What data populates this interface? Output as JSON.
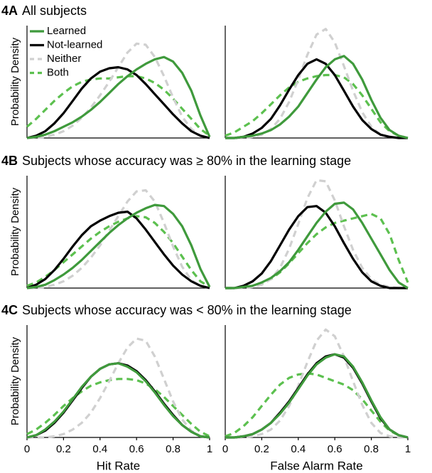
{
  "chart_data": [
    {
      "type": "line",
      "panel_label": "4A",
      "title": "All subjects",
      "ylabel": "Probability Density",
      "legend": "upper left",
      "x": [
        0,
        0.05,
        0.1,
        0.15,
        0.2,
        0.25,
        0.3,
        0.35,
        0.4,
        0.45,
        0.5,
        0.55,
        0.6,
        0.65,
        0.7,
        0.75,
        0.8,
        0.85,
        0.9,
        0.95,
        1
      ],
      "xlim": [
        0,
        1
      ],
      "ylim": [
        0,
        1
      ],
      "series": [
        {
          "name": "Learned",
          "color": "#3f9a3c",
          "dash": false,
          "values": [
            0,
            0.01,
            0.03,
            0.06,
            0.1,
            0.14,
            0.19,
            0.25,
            0.32,
            0.4,
            0.48,
            0.55,
            0.61,
            0.66,
            0.7,
            0.72,
            0.68,
            0.58,
            0.42,
            0.2,
            0.01
          ]
        },
        {
          "name": "Not-learned",
          "color": "#000000",
          "dash": false,
          "values": [
            0,
            0.02,
            0.06,
            0.13,
            0.22,
            0.33,
            0.44,
            0.53,
            0.59,
            0.62,
            0.63,
            0.61,
            0.56,
            0.48,
            0.39,
            0.3,
            0.21,
            0.13,
            0.06,
            0.02,
            0
          ]
        },
        {
          "name": "Neither",
          "color": "#d0d0d0",
          "dash": true,
          "values": [
            0,
            0,
            0.01,
            0.03,
            0.06,
            0.11,
            0.18,
            0.27,
            0.38,
            0.5,
            0.63,
            0.76,
            0.84,
            0.83,
            0.72,
            0.55,
            0.36,
            0.19,
            0.08,
            0.02,
            0
          ]
        },
        {
          "name": "Both",
          "color": "#5cc04f",
          "dash": true,
          "values": [
            0.1,
            0.17,
            0.25,
            0.33,
            0.4,
            0.46,
            0.5,
            0.52,
            0.53,
            0.53,
            0.54,
            0.55,
            0.55,
            0.53,
            0.49,
            0.43,
            0.35,
            0.26,
            0.17,
            0.08,
            0.02
          ]
        }
      ]
    },
    {
      "type": "line",
      "x": [
        0,
        0.05,
        0.1,
        0.15,
        0.2,
        0.25,
        0.3,
        0.35,
        0.4,
        0.45,
        0.5,
        0.55,
        0.6,
        0.65,
        0.7,
        0.75,
        0.8,
        0.85,
        0.9,
        0.95,
        1
      ],
      "xlim": [
        0,
        1
      ],
      "ylim": [
        0,
        1
      ],
      "series": [
        {
          "color": "#3f9a3c",
          "dash": false,
          "values": [
            0,
            0,
            0.01,
            0.02,
            0.04,
            0.07,
            0.12,
            0.19,
            0.28,
            0.4,
            0.52,
            0.63,
            0.7,
            0.73,
            0.66,
            0.52,
            0.34,
            0.18,
            0.07,
            0.02,
            0
          ]
        },
        {
          "color": "#000000",
          "dash": false,
          "values": [
            0,
            0,
            0.01,
            0.04,
            0.09,
            0.17,
            0.29,
            0.43,
            0.56,
            0.66,
            0.7,
            0.66,
            0.56,
            0.42,
            0.28,
            0.16,
            0.08,
            0.03,
            0.01,
            0,
            0
          ]
        },
        {
          "color": "#d0d0d0",
          "dash": true,
          "values": [
            0,
            0,
            0,
            0.01,
            0.03,
            0.08,
            0.17,
            0.32,
            0.52,
            0.74,
            0.92,
            0.97,
            0.85,
            0.64,
            0.42,
            0.23,
            0.1,
            0.03,
            0.01,
            0,
            0
          ]
        },
        {
          "color": "#5cc04f",
          "dash": true,
          "values": [
            0.02,
            0.05,
            0.1,
            0.15,
            0.22,
            0.3,
            0.38,
            0.45,
            0.5,
            0.53,
            0.55,
            0.56,
            0.56,
            0.54,
            0.48,
            0.38,
            0.26,
            0.14,
            0.06,
            0.02,
            0
          ]
        }
      ]
    },
    {
      "type": "line",
      "panel_label": "4B",
      "title": "Subjects whose accuracy was ≥ 80% in the learning stage",
      "ylabel": "Probability Density",
      "x": [
        0,
        0.05,
        0.1,
        0.15,
        0.2,
        0.25,
        0.3,
        0.35,
        0.4,
        0.45,
        0.5,
        0.55,
        0.6,
        0.65,
        0.7,
        0.75,
        0.8,
        0.85,
        0.9,
        0.95,
        1
      ],
      "xlim": [
        0,
        1
      ],
      "ylim": [
        0,
        1
      ],
      "series": [
        {
          "color": "#3f9a3c",
          "dash": false,
          "values": [
            0,
            0.01,
            0.03,
            0.07,
            0.12,
            0.18,
            0.25,
            0.33,
            0.41,
            0.49,
            0.56,
            0.62,
            0.67,
            0.71,
            0.74,
            0.73,
            0.66,
            0.55,
            0.38,
            0.17,
            0.01
          ]
        },
        {
          "color": "#000000",
          "dash": false,
          "values": [
            0,
            0.03,
            0.08,
            0.16,
            0.26,
            0.37,
            0.47,
            0.55,
            0.6,
            0.64,
            0.67,
            0.68,
            0.62,
            0.52,
            0.41,
            0.3,
            0.2,
            0.12,
            0.06,
            0.02,
            0
          ]
        },
        {
          "color": "#d0d0d0",
          "dash": true,
          "values": [
            0,
            0,
            0.01,
            0.03,
            0.06,
            0.11,
            0.18,
            0.27,
            0.38,
            0.51,
            0.64,
            0.77,
            0.86,
            0.87,
            0.77,
            0.58,
            0.37,
            0.19,
            0.07,
            0.02,
            0
          ]
        },
        {
          "color": "#5cc04f",
          "dash": true,
          "values": [
            0.02,
            0.05,
            0.1,
            0.16,
            0.23,
            0.3,
            0.37,
            0.44,
            0.5,
            0.55,
            0.59,
            0.62,
            0.64,
            0.63,
            0.58,
            0.5,
            0.4,
            0.28,
            0.16,
            0.06,
            0.01
          ]
        }
      ]
    },
    {
      "type": "line",
      "x": [
        0,
        0.05,
        0.1,
        0.15,
        0.2,
        0.25,
        0.3,
        0.35,
        0.4,
        0.45,
        0.5,
        0.55,
        0.6,
        0.65,
        0.7,
        0.75,
        0.8,
        0.85,
        0.9,
        0.95,
        1
      ],
      "xlim": [
        0,
        1
      ],
      "ylim": [
        0,
        1
      ],
      "series": [
        {
          "color": "#3f9a3c",
          "dash": false,
          "values": [
            0,
            0,
            0.01,
            0.02,
            0.05,
            0.09,
            0.15,
            0.23,
            0.34,
            0.46,
            0.58,
            0.68,
            0.75,
            0.76,
            0.7,
            0.58,
            0.44,
            0.3,
            0.16,
            0.05,
            0
          ]
        },
        {
          "color": "#000000",
          "dash": false,
          "values": [
            0,
            0,
            0.02,
            0.06,
            0.13,
            0.24,
            0.38,
            0.52,
            0.64,
            0.72,
            0.73,
            0.67,
            0.55,
            0.4,
            0.26,
            0.14,
            0.06,
            0.02,
            0,
            0,
            0
          ]
        },
        {
          "color": "#d0d0d0",
          "dash": true,
          "values": [
            0,
            0,
            0,
            0.01,
            0.03,
            0.08,
            0.18,
            0.35,
            0.57,
            0.8,
            0.96,
            0.95,
            0.78,
            0.55,
            0.34,
            0.18,
            0.08,
            0.03,
            0.01,
            0,
            0
          ]
        },
        {
          "color": "#5cc04f",
          "dash": true,
          "values": [
            0,
            0,
            0.01,
            0.02,
            0.04,
            0.08,
            0.14,
            0.22,
            0.31,
            0.4,
            0.48,
            0.54,
            0.58,
            0.6,
            0.62,
            0.64,
            0.66,
            0.62,
            0.48,
            0.25,
            0.05
          ]
        }
      ]
    },
    {
      "type": "line",
      "panel_label": "4C",
      "title": "Subjects whose accuracy was < 80% in the learning stage",
      "ylabel": "Probability Density",
      "xlabel": "Hit Rate",
      "x": [
        0,
        0.05,
        0.1,
        0.15,
        0.2,
        0.25,
        0.3,
        0.35,
        0.4,
        0.45,
        0.5,
        0.55,
        0.6,
        0.65,
        0.7,
        0.75,
        0.8,
        0.85,
        0.9,
        0.95,
        1
      ],
      "xlim": [
        0,
        1
      ],
      "ylim": [
        0,
        1
      ],
      "xticks": [
        0,
        0.2,
        0.4,
        0.6,
        0.8,
        1
      ],
      "series": [
        {
          "color": "#3f9a3c",
          "dash": false,
          "values": [
            0,
            0.02,
            0.07,
            0.14,
            0.23,
            0.34,
            0.45,
            0.54,
            0.61,
            0.65,
            0.66,
            0.63,
            0.58,
            0.5,
            0.4,
            0.29,
            0.19,
            0.11,
            0.05,
            0.01,
            0
          ]
        },
        {
          "color": "#000000",
          "dash": false,
          "values": [
            0,
            0.02,
            0.06,
            0.13,
            0.22,
            0.33,
            0.44,
            0.54,
            0.61,
            0.65,
            0.66,
            0.64,
            0.59,
            0.51,
            0.41,
            0.3,
            0.2,
            0.11,
            0.05,
            0.01,
            0
          ]
        },
        {
          "color": "#d0d0d0",
          "dash": true,
          "values": [
            0,
            0,
            0,
            0.01,
            0.03,
            0.07,
            0.13,
            0.22,
            0.35,
            0.5,
            0.66,
            0.8,
            0.88,
            0.86,
            0.72,
            0.52,
            0.32,
            0.16,
            0.06,
            0.01,
            0
          ]
        },
        {
          "color": "#5cc04f",
          "dash": true,
          "values": [
            0.03,
            0.07,
            0.13,
            0.2,
            0.28,
            0.35,
            0.41,
            0.46,
            0.49,
            0.51,
            0.52,
            0.52,
            0.51,
            0.48,
            0.43,
            0.36,
            0.28,
            0.2,
            0.12,
            0.05,
            0.01
          ]
        }
      ]
    },
    {
      "type": "line",
      "xlabel": "False Alarm Rate",
      "x": [
        0,
        0.05,
        0.1,
        0.15,
        0.2,
        0.25,
        0.3,
        0.35,
        0.4,
        0.45,
        0.5,
        0.55,
        0.6,
        0.65,
        0.7,
        0.75,
        0.8,
        0.85,
        0.9,
        0.95,
        1
      ],
      "xlim": [
        0,
        1
      ],
      "ylim": [
        0,
        1
      ],
      "xticks": [
        0,
        0.2,
        0.4,
        0.6,
        0.8,
        1
      ],
      "series": [
        {
          "color": "#3f9a3c",
          "dash": false,
          "values": [
            0,
            0,
            0.01,
            0.03,
            0.07,
            0.13,
            0.21,
            0.31,
            0.43,
            0.55,
            0.65,
            0.71,
            0.74,
            0.72,
            0.63,
            0.49,
            0.33,
            0.18,
            0.07,
            0.02,
            0
          ]
        },
        {
          "color": "#000000",
          "dash": false,
          "values": [
            0,
            0,
            0.01,
            0.03,
            0.07,
            0.13,
            0.22,
            0.32,
            0.44,
            0.56,
            0.66,
            0.72,
            0.74,
            0.71,
            0.62,
            0.48,
            0.32,
            0.17,
            0.07,
            0.02,
            0
          ]
        },
        {
          "color": "#d0d0d0",
          "dash": true,
          "values": [
            0,
            0,
            0,
            0.01,
            0.03,
            0.07,
            0.15,
            0.28,
            0.46,
            0.67,
            0.86,
            0.96,
            0.9,
            0.72,
            0.5,
            0.29,
            0.13,
            0.04,
            0.01,
            0,
            0
          ]
        },
        {
          "color": "#5cc04f",
          "dash": true,
          "values": [
            0.01,
            0.04,
            0.1,
            0.18,
            0.28,
            0.38,
            0.47,
            0.53,
            0.56,
            0.57,
            0.56,
            0.53,
            0.5,
            0.47,
            0.42,
            0.34,
            0.24,
            0.14,
            0.06,
            0.02,
            0
          ]
        }
      ]
    }
  ]
}
